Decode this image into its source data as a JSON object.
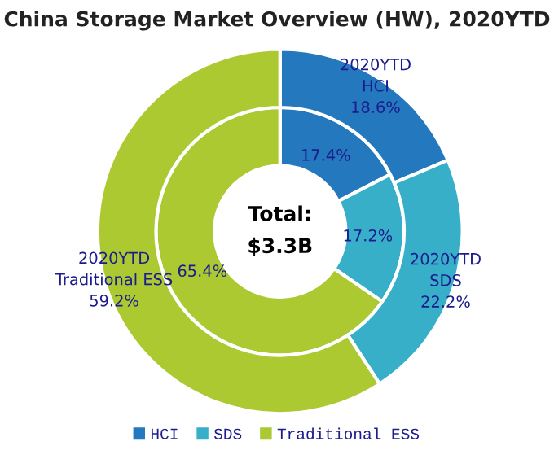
{
  "chart_data": {
    "type": "donut",
    "title": "China Storage Market Overview (HW), 2020YTD",
    "categories": [
      "HCI",
      "SDS",
      "Traditional ESS"
    ],
    "colors": [
      "#2478bd",
      "#38afc9",
      "#acc932"
    ],
    "series": [
      {
        "values": [
          17.4,
          17.2,
          65.4
        ],
        "value_labels": [
          "17.4%",
          "17.2%",
          "65.4%"
        ]
      },
      {
        "values": [
          18.6,
          22.2,
          59.2
        ],
        "value_labels": [
          "2020YTD\nHCI\n18.6%",
          "2020YTD\nSDS\n22.2%",
          "2020YTD\nTraditional ESS\n59.2%"
        ]
      }
    ],
    "annotations": [
      "Total:\n$3.3B"
    ],
    "legend": "bottom"
  }
}
